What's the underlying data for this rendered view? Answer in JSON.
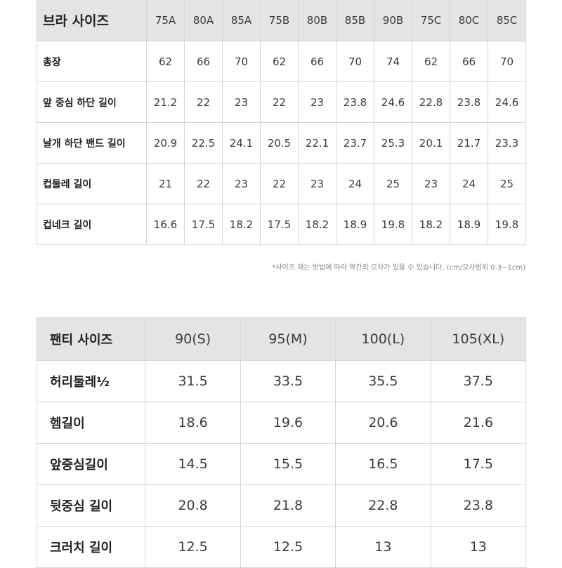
{
  "bra_table": {
    "title": "브라 사이즈",
    "sizes": [
      "75A",
      "80A",
      "85A",
      "75B",
      "80B",
      "85B",
      "90B",
      "75C",
      "80C",
      "85C"
    ],
    "rows": [
      {
        "label": "총장",
        "values": [
          "62",
          "66",
          "70",
          "62",
          "66",
          "70",
          "74",
          "62",
          "66",
          "70"
        ]
      },
      {
        "label": "앞 중심 하단 길이",
        "values": [
          "21.2",
          "22",
          "23",
          "22",
          "23",
          "23.8",
          "24.6",
          "22.8",
          "23.8",
          "24.6"
        ]
      },
      {
        "label": "날개 하단 밴드 길이",
        "values": [
          "20.9",
          "22.5",
          "24.1",
          "20.5",
          "22.1",
          "23.7",
          "25.3",
          "20.1",
          "21.7",
          "23.3"
        ]
      },
      {
        "label": "컵둘레 길이",
        "values": [
          "21",
          "22",
          "23",
          "22",
          "23",
          "24",
          "25",
          "23",
          "24",
          "25"
        ]
      },
      {
        "label": "컵네크 길이",
        "values": [
          "16.6",
          "17.5",
          "18.2",
          "17.5",
          "18.2",
          "18.9",
          "19.8",
          "18.2",
          "18.9",
          "19.8"
        ]
      }
    ]
  },
  "note": "*사이즈 재는 방법에 따라 약간의 오차가 있을 수 있습니다. (cm/오차범위 0.3~1cm)",
  "panty_table": {
    "title": "팬티 사이즈",
    "sizes": [
      "90(S)",
      "95(M)",
      "100(L)",
      "105(XL)"
    ],
    "rows": [
      {
        "label": "허리둘레½",
        "values": [
          "31.5",
          "33.5",
          "35.5",
          "37.5"
        ]
      },
      {
        "label": "헴길이",
        "values": [
          "18.6",
          "19.6",
          "20.6",
          "21.6"
        ]
      },
      {
        "label": "앞중심길이",
        "values": [
          "14.5",
          "15.5",
          "16.5",
          "17.5"
        ]
      },
      {
        "label": "뒷중심 길이",
        "values": [
          "20.8",
          "21.8",
          "22.8",
          "23.8"
        ]
      },
      {
        "label": "크러치 길이",
        "values": [
          "12.5",
          "12.5",
          "13",
          "13"
        ]
      }
    ]
  }
}
